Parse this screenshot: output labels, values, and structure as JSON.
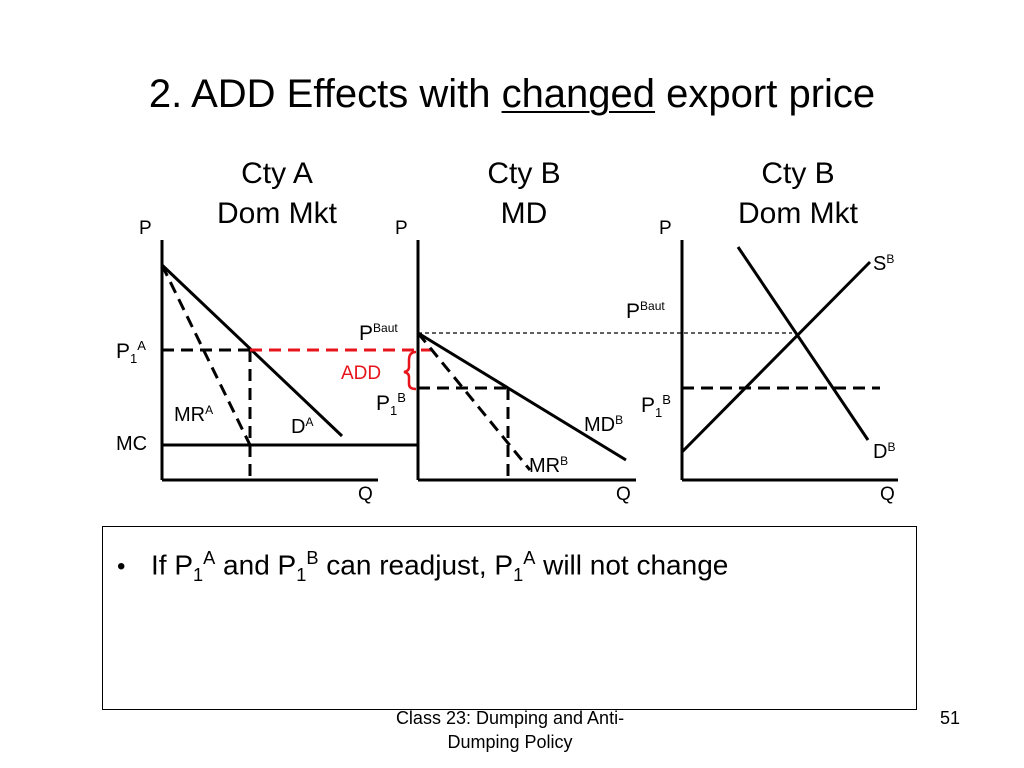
{
  "title": {
    "prefix": "2.  ADD Effects with ",
    "emphasis": "changed",
    "suffix": " export price"
  },
  "panels": [
    {
      "title_line1": "Cty A",
      "title_line2": "Dom Mkt",
      "axis_p": "P",
      "axis_q": "Q"
    },
    {
      "title_line1": "Cty B",
      "title_line2": "MD",
      "axis_p": "P",
      "axis_q": "Q"
    },
    {
      "title_line1": "Cty B",
      "title_line2": "Dom Mkt",
      "axis_p": "P",
      "axis_q": "Q"
    }
  ],
  "labels": {
    "p1a_main": "P",
    "p1a_sub": "1",
    "p1a_sup": "A",
    "mc": "MC",
    "mra_main": "MR",
    "mra_sup": "A",
    "da_main": "D",
    "da_sup": "A",
    "add": "ADD",
    "pbaut_main": "P",
    "pbaut_sup": "Baut",
    "p1b_main": "P",
    "p1b_sub": "1",
    "p1b_sup": "B",
    "mdb_main": "MD",
    "mdb_sup": "B",
    "mrb_main": "MR",
    "mrb_sup": "B",
    "sb_main": "S",
    "sb_sup": "B",
    "db_main": "D",
    "db_sup": "B"
  },
  "colors": {
    "accent": "#e8141b",
    "line": "#000000"
  },
  "bullet": {
    "t1": "If P",
    "s1": "1",
    "p1": "A",
    "t2": " and P",
    "s2": "1",
    "p2": "B",
    "t3": " can readjust, P",
    "s3": "1",
    "p3": "A",
    "t4": " will not change"
  },
  "footer": {
    "line1": "Class 23:  Dumping and Anti-",
    "line2": "Dumping Policy",
    "page": "51"
  }
}
